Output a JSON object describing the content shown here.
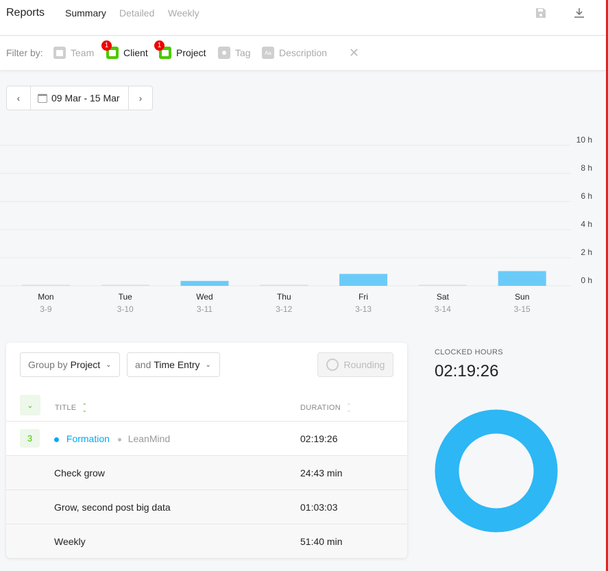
{
  "header": {
    "title": "Reports",
    "tabs": [
      "Summary",
      "Detailed",
      "Weekly"
    ],
    "active_tab": "Summary",
    "icons": [
      "save-icon",
      "download-icon"
    ]
  },
  "filters": {
    "label": "Filter by:",
    "items": [
      {
        "name": "Team",
        "active": false
      },
      {
        "name": "Client",
        "active": true,
        "count": "1"
      },
      {
        "name": "Project",
        "active": true,
        "count": "1"
      },
      {
        "name": "Tag",
        "active": false
      },
      {
        "name": "Description",
        "active": false
      }
    ],
    "clear": "✕"
  },
  "date_range": {
    "label": "09 Mar - 15 Mar",
    "prev": "‹",
    "next": "›"
  },
  "chart_data": {
    "type": "bar",
    "categories": [
      "Mon",
      "Tue",
      "Wed",
      "Thu",
      "Fri",
      "Sat",
      "Sun"
    ],
    "dates": [
      "3-9",
      "3-10",
      "3-11",
      "3-12",
      "3-13",
      "3-14",
      "3-15"
    ],
    "values": [
      0,
      0,
      0.35,
      0,
      0.85,
      0,
      1.05
    ],
    "yticks": [
      "0 h",
      "2 h",
      "4 h",
      "6 h",
      "8 h",
      "10 h"
    ],
    "ylim": [
      0,
      10
    ],
    "bar_color": "#6bcbf8",
    "grid": true
  },
  "report": {
    "group_by_prefix": "Group by",
    "group_by": "Project",
    "sub_prefix": "and",
    "sub_group": "Time Entry",
    "rounding": "Rounding",
    "columns": {
      "title": "TITLE",
      "duration": "DURATION"
    },
    "project_row": {
      "count": "3",
      "project": "Formation",
      "client": "LeanMind",
      "duration": "02:19:26",
      "color": "#03a9f4"
    },
    "entries": [
      {
        "title": "Check grow",
        "duration": "24:43 min"
      },
      {
        "title": "Grow, second post big data",
        "duration": "01:03:03"
      },
      {
        "title": "Weekly",
        "duration": "51:40 min"
      }
    ]
  },
  "clocked": {
    "label": "CLOCKED HOURS",
    "value": "02:19:26",
    "donut_color": "#2db7f5"
  }
}
